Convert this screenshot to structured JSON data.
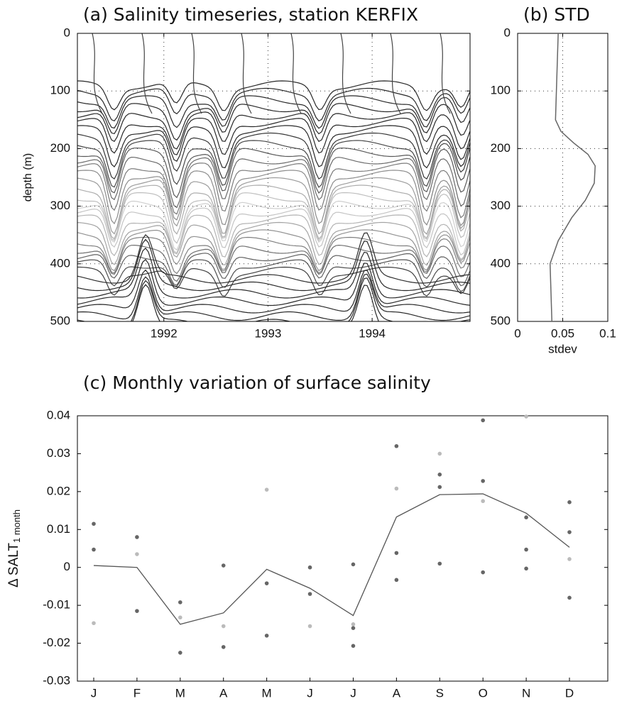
{
  "chart_data": [
    {
      "type": "contour",
      "title": "(a) Salinity timeseries, station KERFIX",
      "ylabel": "depth (m)",
      "xlim": [
        1991.17,
        1994.94
      ],
      "xticks": [
        1992,
        1993,
        1994
      ],
      "ylim": [
        0,
        500
      ],
      "yticks": [
        0,
        100,
        200,
        300,
        400,
        500
      ],
      "y_inverted": true,
      "grid": true
    },
    {
      "type": "profile",
      "title": "(b) STD",
      "xlabel": "stdev",
      "xlim": [
        0,
        0.1
      ],
      "xticks": [
        0,
        0.05,
        0.1
      ],
      "ylim": [
        0,
        500
      ],
      "yticks": [
        0,
        100,
        200,
        300,
        400,
        500
      ],
      "y_inverted": true,
      "grid": true,
      "color": "#666666",
      "depth": [
        0,
        50,
        100,
        150,
        170,
        190,
        210,
        230,
        260,
        290,
        320,
        360,
        400,
        450,
        500
      ],
      "values": [
        0.045,
        0.044,
        0.043,
        0.042,
        0.048,
        0.062,
        0.078,
        0.086,
        0.085,
        0.075,
        0.06,
        0.045,
        0.036,
        0.037,
        0.038
      ]
    },
    {
      "type": "scatter-line",
      "title": "(c) Monthly variation of surface salinity",
      "ylabel": "Δ SALT",
      "ylabel_sub": "1 month",
      "categories": [
        "J",
        "F",
        "M",
        "A",
        "M",
        "J",
        "J",
        "A",
        "S",
        "O",
        "N",
        "D"
      ],
      "ylim": [
        -0.03,
        0.04
      ],
      "yticks": [
        0.04,
        0.03,
        0.02,
        0.01,
        0,
        -0.01,
        -0.02,
        -0.03
      ],
      "line": {
        "color": "#555555",
        "values": [
          0.0005,
          0,
          -0.015,
          -0.012,
          -0.0005,
          -0.0055,
          -0.0127,
          0.0133,
          0.0192,
          0.0194,
          0.0143,
          0.0053
        ]
      },
      "series": [
        {
          "color": "#666666",
          "values": [
            0.0115,
            0.008,
            -0.0092,
            0.0005,
            -0.0042,
            0.0,
            0.0008,
            0.032,
            0.0245,
            0.0388,
            0.0132,
            0.0172
          ]
        },
        {
          "color": "#666666",
          "values": [
            0.0047,
            -0.0115,
            -0.0225,
            -0.021,
            -0.018,
            -0.007,
            -0.016,
            0.0038,
            0.0212,
            0.0228,
            0.0047,
            0.0093
          ]
        },
        {
          "color": "#666666",
          "values": [
            null,
            null,
            null,
            null,
            null,
            null,
            -0.0207,
            -0.0033,
            0.001,
            -0.0013,
            -0.0003,
            -0.008
          ]
        },
        {
          "color": "#bbbbbb",
          "values": [
            -0.0147,
            0.0035,
            -0.0132,
            -0.0155,
            0.0205,
            -0.0155,
            -0.015,
            0.0208,
            0.03,
            0.0175,
            0.0398,
            0.0022
          ]
        }
      ]
    }
  ]
}
